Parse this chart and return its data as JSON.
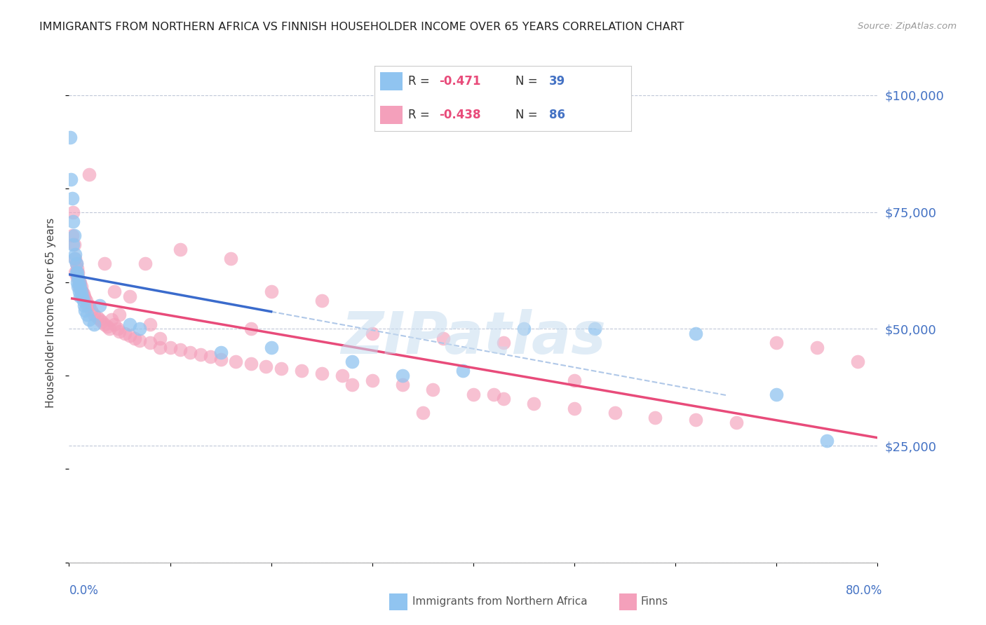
{
  "title": "IMMIGRANTS FROM NORTHERN AFRICA VS FINNISH HOUSEHOLDER INCOME OVER 65 YEARS CORRELATION CHART",
  "source": "Source: ZipAtlas.com",
  "ylabel": "Householder Income Over 65 years",
  "y_ticks": [
    0,
    25000,
    50000,
    75000,
    100000
  ],
  "y_tick_labels": [
    "",
    "$25,000",
    "$50,000",
    "$75,000",
    "$100,000"
  ],
  "x_min": 0.0,
  "x_max": 0.8,
  "y_min": 0,
  "y_max": 107000,
  "color_blue": "#90c4f0",
  "color_pink": "#f4a0bb",
  "color_blue_line": "#3a6bcc",
  "color_pink_line": "#e84b7a",
  "color_dashed": "#b0c8e8",
  "watermark": "ZIPatlas",
  "blue_x": [
    0.001,
    0.002,
    0.003,
    0.004,
    0.004,
    0.005,
    0.005,
    0.006,
    0.007,
    0.007,
    0.008,
    0.008,
    0.009,
    0.009,
    0.01,
    0.01,
    0.011,
    0.011,
    0.012,
    0.013,
    0.014,
    0.015,
    0.016,
    0.018,
    0.02,
    0.025,
    0.03,
    0.06,
    0.07,
    0.15,
    0.2,
    0.28,
    0.33,
    0.39,
    0.45,
    0.52,
    0.62,
    0.7,
    0.75
  ],
  "blue_y": [
    91000,
    82000,
    78000,
    73000,
    68000,
    70000,
    65000,
    66000,
    64000,
    62000,
    62000,
    60000,
    61000,
    59000,
    60000,
    58000,
    59000,
    57000,
    58000,
    57000,
    56000,
    55000,
    54000,
    53000,
    52000,
    51000,
    55000,
    51000,
    50000,
    45000,
    46000,
    43000,
    40000,
    41000,
    50000,
    50000,
    49000,
    36000,
    26000
  ],
  "pink_x": [
    0.003,
    0.004,
    0.005,
    0.006,
    0.006,
    0.007,
    0.008,
    0.008,
    0.009,
    0.01,
    0.01,
    0.011,
    0.012,
    0.012,
    0.013,
    0.014,
    0.015,
    0.016,
    0.017,
    0.018,
    0.02,
    0.022,
    0.025,
    0.028,
    0.03,
    0.032,
    0.035,
    0.038,
    0.04,
    0.042,
    0.045,
    0.048,
    0.05,
    0.055,
    0.06,
    0.065,
    0.07,
    0.08,
    0.09,
    0.1,
    0.11,
    0.12,
    0.13,
    0.14,
    0.15,
    0.165,
    0.18,
    0.195,
    0.21,
    0.23,
    0.25,
    0.27,
    0.3,
    0.33,
    0.36,
    0.4,
    0.43,
    0.46,
    0.5,
    0.54,
    0.58,
    0.62,
    0.66,
    0.7,
    0.74,
    0.78,
    0.05,
    0.08,
    0.11,
    0.16,
    0.2,
    0.25,
    0.3,
    0.37,
    0.43,
    0.5,
    0.035,
    0.06,
    0.09,
    0.18,
    0.28,
    0.42,
    0.02,
    0.045,
    0.075,
    0.35
  ],
  "pink_y": [
    70000,
    75000,
    68000,
    65000,
    62000,
    64000,
    63000,
    61000,
    62000,
    60000,
    59000,
    60000,
    59000,
    58000,
    58000,
    57500,
    57000,
    56500,
    56000,
    55000,
    55000,
    54000,
    53000,
    52500,
    52000,
    51500,
    51000,
    50500,
    50000,
    52000,
    51000,
    50000,
    49500,
    49000,
    48500,
    48000,
    47500,
    47000,
    46000,
    46000,
    45500,
    45000,
    44500,
    44000,
    43500,
    43000,
    42500,
    42000,
    41500,
    41000,
    40500,
    40000,
    39000,
    38000,
    37000,
    36000,
    35000,
    34000,
    33000,
    32000,
    31000,
    30500,
    30000,
    47000,
    46000,
    43000,
    53000,
    51000,
    67000,
    65000,
    58000,
    56000,
    49000,
    48000,
    47000,
    39000,
    64000,
    57000,
    48000,
    50000,
    38000,
    36000,
    83000,
    58000,
    64000,
    32000
  ]
}
